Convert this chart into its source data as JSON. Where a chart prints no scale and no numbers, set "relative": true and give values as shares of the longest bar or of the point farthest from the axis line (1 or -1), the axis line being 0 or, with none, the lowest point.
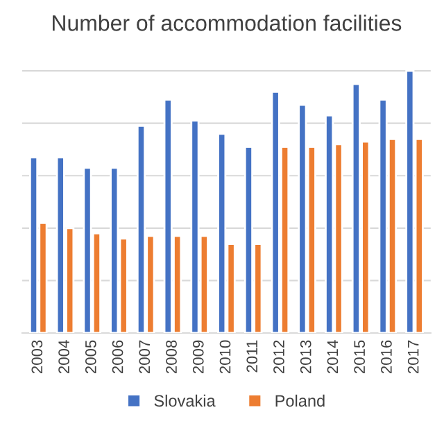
{
  "chart_data": {
    "type": "bar",
    "title": "Number of accommodation facilities",
    "relative": true,
    "categories": [
      "2003",
      "2004",
      "2005",
      "2006",
      "2007",
      "2008",
      "2009",
      "2010",
      "2011",
      "2012",
      "2013",
      "2014",
      "2015",
      "2016",
      "2017"
    ],
    "series": [
      {
        "name": "Slovakia",
        "color": "#4472c4",
        "values": [
          0.67,
          0.67,
          0.63,
          0.63,
          0.79,
          0.89,
          0.81,
          0.76,
          0.71,
          0.92,
          0.87,
          0.83,
          0.95,
          0.89,
          1.0
        ]
      },
      {
        "name": "Poland",
        "color": "#ed7d31",
        "values": [
          0.42,
          0.4,
          0.38,
          0.36,
          0.37,
          0.37,
          0.37,
          0.34,
          0.34,
          0.71,
          0.71,
          0.72,
          0.73,
          0.74,
          0.74
        ]
      }
    ],
    "grid": "y",
    "legend": "bottom"
  }
}
